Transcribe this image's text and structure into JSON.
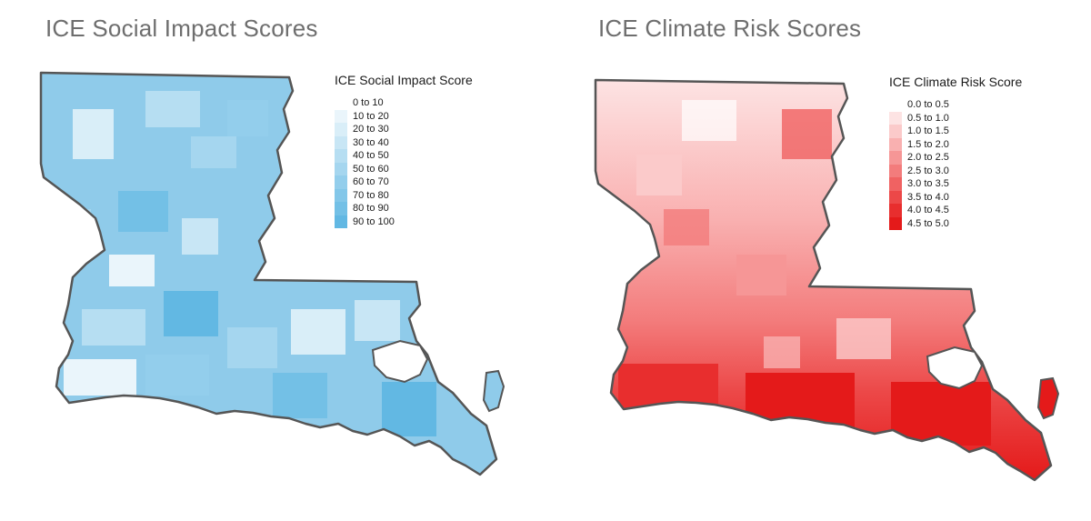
{
  "maps": [
    {
      "id": "social",
      "title": "ICE Social Impact Scores",
      "legend_title": "ICE Social Impact Score",
      "legend": [
        {
          "label": "0 to 10",
          "color": "#ffffff"
        },
        {
          "label": "10 to 20",
          "color": "#eaf5fb"
        },
        {
          "label": "20 to 30",
          "color": "#d9eef8"
        },
        {
          "label": "30 to 40",
          "color": "#c8e6f5"
        },
        {
          "label": "40 to 50",
          "color": "#b6def2"
        },
        {
          "label": "50 to 60",
          "color": "#a5d6ef"
        },
        {
          "label": "60 to 70",
          "color": "#93ceec"
        },
        {
          "label": "70 to 80",
          "color": "#83c7e9"
        },
        {
          "label": "80 to 90",
          "color": "#73c0e6"
        },
        {
          "label": "90 to 100",
          "color": "#62b8e3"
        }
      ],
      "base_color": "#8fcbea"
    },
    {
      "id": "climate",
      "title": "ICE Climate Risk Scores",
      "legend_title": "ICE Climate Risk Score",
      "legend": [
        {
          "label": "0.0 to 0.5",
          "color": "#ffffff"
        },
        {
          "label": "0.5 to 1.0",
          "color": "#fde3e3"
        },
        {
          "label": "1.0 to 1.5",
          "color": "#fbcaca"
        },
        {
          "label": "1.5 to 2.0",
          "color": "#f9b0b0"
        },
        {
          "label": "2.0 to 2.5",
          "color": "#f69696"
        },
        {
          "label": "2.5 to 3.0",
          "color": "#f37c7c"
        },
        {
          "label": "3.0 to 3.5",
          "color": "#f06262"
        },
        {
          "label": "3.5 to 4.0",
          "color": "#ec4848"
        },
        {
          "label": "4.0 to 4.5",
          "color": "#e82e2e"
        },
        {
          "label": "4.5 to 5.0",
          "color": "#e41a1a"
        }
      ],
      "base_color": "#f59a9a"
    }
  ]
}
